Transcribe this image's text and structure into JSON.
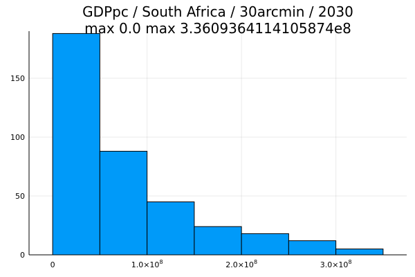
{
  "chart_data": {
    "type": "bar",
    "title": "GDPpc / South Africa / 30arcmin / 2030",
    "subtitle": "max 0.0  max 3.3609364114105874e8",
    "xlabel": "",
    "ylabel": "",
    "bin_edges": [
      0,
      50000000,
      100000000,
      150000000,
      200000000,
      250000000,
      300000000,
      350000000
    ],
    "values": [
      188,
      88,
      45,
      24,
      18,
      12,
      5
    ],
    "xlim": [
      -25000000,
      375000000
    ],
    "ylim": [
      0,
      190
    ],
    "x_ticks": [
      {
        "value": 0,
        "mantissa": "0",
        "exponent": ""
      },
      {
        "value": 100000000,
        "mantissa": "1.0×10",
        "exponent": "8"
      },
      {
        "value": 200000000,
        "mantissa": "2.0×10",
        "exponent": "8"
      },
      {
        "value": 300000000,
        "mantissa": "3.0×10",
        "exponent": "8"
      }
    ],
    "y_ticks": [
      0,
      50,
      100,
      150
    ],
    "grid": true,
    "legend": "none",
    "colors": {
      "bar_fill": "#009af9",
      "bar_edge": "#000000"
    }
  }
}
